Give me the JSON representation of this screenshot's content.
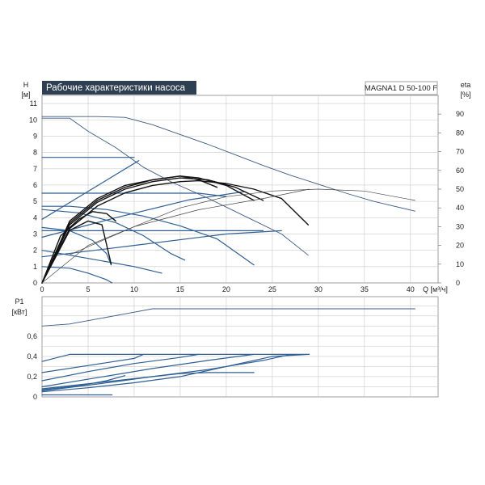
{
  "chart_data": [
    {
      "type": "line",
      "title": "Рабочие характеристики насоса",
      "model": "MAGNA1 D 50-100 F",
      "ylabel_left": "H",
      "yunit_left": "[м]",
      "ylabel_right": "eta",
      "yunit_right": "[%]",
      "xlabel": "Q [м³/ч]",
      "xlim": [
        0,
        43
      ],
      "ylim": [
        0,
        11.5
      ],
      "y2lim": [
        0,
        100
      ],
      "xticks": [
        "0",
        "5",
        "10",
        "15",
        "20",
        "25",
        "30",
        "35",
        "40"
      ],
      "yticks": [
        "0",
        "1",
        "2",
        "3",
        "4",
        "5",
        "6",
        "7",
        "8",
        "9",
        "10",
        "11"
      ],
      "y2ticks": [
        "0",
        "10",
        "20",
        "30",
        "40",
        "50",
        "60",
        "70",
        "80",
        "90"
      ],
      "grid": true,
      "series": [
        {
          "role": "max-curve",
          "color": "#3b5a85",
          "points": [
            [
              0,
              10.2
            ],
            [
              3,
              10.2
            ],
            [
              6,
              10.2
            ],
            [
              9,
              10.15
            ],
            [
              12,
              9.7
            ],
            [
              15,
              9.1
            ],
            [
              18,
              8.5
            ],
            [
              21,
              7.85
            ],
            [
              24,
              7.2
            ],
            [
              27,
              6.6
            ],
            [
              30,
              6.05
            ],
            [
              33,
              5.5
            ],
            [
              36,
              5.0
            ],
            [
              40.5,
              4.4
            ]
          ]
        },
        {
          "role": "max-curve",
          "color": "#3b5a85",
          "points": [
            [
              0,
              10.1
            ],
            [
              3,
              10.1
            ],
            [
              5,
              9.3
            ],
            [
              8,
              8.3
            ],
            [
              11,
              7.1
            ],
            [
              14,
              6.2
            ],
            [
              18,
              5.2
            ],
            [
              22,
              4.1
            ],
            [
              26,
              3.0
            ],
            [
              28.9,
              1.7
            ]
          ]
        },
        {
          "role": "const-pressure",
          "color": "#2f5f93",
          "points": [
            [
              0,
              7.7
            ],
            [
              10,
              7.7
            ]
          ]
        },
        {
          "role": "const-pressure",
          "color": "#2f5f93",
          "points": [
            [
              0,
              5.5
            ],
            [
              17,
              5.5
            ],
            [
              20,
              5.3
            ]
          ]
        },
        {
          "role": "const-pressure",
          "color": "#2f5f93",
          "points": [
            [
              0,
              3.2
            ],
            [
              24,
              3.2
            ]
          ]
        },
        {
          "role": "prop-pressure",
          "color": "#2f5f93",
          "points": [
            [
              0,
              3.9
            ],
            [
              10.5,
              7.5
            ]
          ]
        },
        {
          "role": "prop-pressure",
          "color": "#2f5f93",
          "points": [
            [
              0,
              2.8
            ],
            [
              8,
              4.0
            ],
            [
              16,
              5.1
            ],
            [
              22,
              5.6
            ]
          ]
        },
        {
          "role": "prop-pressure",
          "color": "#2f5f93",
          "points": [
            [
              0,
              1.6
            ],
            [
              10,
              2.3
            ],
            [
              20,
              3.0
            ],
            [
              26,
              3.2
            ]
          ]
        },
        {
          "role": "const-curve",
          "color": "#2f5f93",
          "points": [
            [
              0,
              4.7
            ],
            [
              3,
              4.7
            ],
            [
              7,
              4.5
            ],
            [
              11,
              4.1
            ],
            [
              15,
              3.5
            ],
            [
              19,
              2.7
            ],
            [
              23,
              1.1
            ]
          ]
        },
        {
          "role": "const-curve",
          "color": "#2f5f93",
          "points": [
            [
              0,
              4.5
            ],
            [
              4,
              4.3
            ],
            [
              8,
              3.7
            ],
            [
              11,
              2.9
            ],
            [
              14,
              1.8
            ],
            [
              15.5,
              1.4
            ]
          ]
        },
        {
          "role": "const-curve",
          "color": "#2f5f93",
          "points": [
            [
              0,
              3.4
            ],
            [
              3,
              3.2
            ],
            [
              5.5,
              2.6
            ],
            [
              7,
              1.8
            ],
            [
              7.5,
              1.1
            ]
          ]
        },
        {
          "role": "const-curve",
          "color": "#2f5f93",
          "points": [
            [
              0,
              1.0
            ],
            [
              3,
              0.9
            ],
            [
              5,
              0.6
            ],
            [
              7,
              0.2
            ],
            [
              7.6,
              0.0
            ]
          ]
        },
        {
          "role": "const-curve",
          "color": "#2f5f93",
          "points": [
            [
              0,
              2.0
            ],
            [
              5,
              1.5
            ],
            [
              10,
              1.0
            ],
            [
              13,
              0.6
            ]
          ]
        },
        {
          "role": "eta",
          "color": "#111111",
          "points": [
            [
              0,
              0
            ],
            [
              3,
              29
            ],
            [
              6,
              41
            ],
            [
              9,
              48
            ],
            [
              12,
              52
            ],
            [
              15,
              54
            ],
            [
              17,
              54.5
            ],
            [
              20,
              53
            ],
            [
              23,
              50
            ],
            [
              26,
              45
            ],
            [
              28.9,
              31
            ]
          ]
        },
        {
          "role": "eta",
          "color": "#111111",
          "points": [
            [
              0,
              0
            ],
            [
              3,
              31
            ],
            [
              6,
              43
            ],
            [
              9,
              50
            ],
            [
              12,
              54
            ],
            [
              15,
              56
            ],
            [
              18,
              55
            ],
            [
              21,
              51
            ],
            [
              24,
              44
            ]
          ]
        },
        {
          "role": "eta",
          "color": "#111111",
          "points": [
            [
              0,
              0
            ],
            [
              3,
              32
            ],
            [
              6,
              44
            ],
            [
              9,
              51
            ],
            [
              12,
              55
            ],
            [
              15,
              57
            ],
            [
              17,
              56
            ],
            [
              20,
              52
            ],
            [
              23,
              44
            ]
          ]
        },
        {
          "role": "eta",
          "color": "#111111",
          "points": [
            [
              0,
              0
            ],
            [
              3,
              33
            ],
            [
              6,
              45
            ],
            [
              9,
              52
            ],
            [
              12,
              55
            ],
            [
              15,
              57
            ],
            [
              17,
              55
            ],
            [
              19,
              51
            ]
          ]
        },
        {
          "role": "eta",
          "color": "#111111",
          "points": [
            [
              0,
              0
            ],
            [
              2,
              25
            ],
            [
              4,
              34
            ],
            [
              5.5,
              38
            ],
            [
              7,
              37
            ],
            [
              8,
              33
            ]
          ]
        },
        {
          "role": "eta",
          "color": "#111111",
          "points": [
            [
              0,
              0
            ],
            [
              3,
              28
            ],
            [
              5,
              33
            ],
            [
              6.5,
              31
            ],
            [
              7.5,
              10
            ]
          ]
        },
        {
          "role": "eta-thin",
          "color": "#444444",
          "points": [
            [
              0,
              0
            ],
            [
              5,
              20
            ],
            [
              10,
              30
            ],
            [
              15,
              40
            ],
            [
              20,
              46
            ],
            [
              25,
              49
            ],
            [
              30,
              50
            ],
            [
              35,
              49
            ],
            [
              40.5,
              44
            ]
          ]
        },
        {
          "role": "eta-thin",
          "color": "#444444",
          "points": [
            [
              3,
              15
            ],
            [
              10,
              30
            ],
            [
              17,
              39
            ],
            [
              24,
              45
            ],
            [
              29,
              50
            ]
          ]
        }
      ]
    },
    {
      "type": "line",
      "ylabel": "P1",
      "yunit": "[кВт]",
      "xlim": [
        0,
        43
      ],
      "ylim": [
        0,
        0.99
      ],
      "yticks": [
        "0",
        "0,2",
        "0,4",
        "0,6"
      ],
      "grid": true,
      "series": [
        {
          "role": "max-power",
          "color": "#3b5a85",
          "points": [
            [
              0,
              0.7
            ],
            [
              3,
              0.72
            ],
            [
              6,
              0.77
            ],
            [
              9,
              0.82
            ],
            [
              12,
              0.87
            ],
            [
              15,
              0.87
            ],
            [
              20,
              0.87
            ],
            [
              25,
              0.87
            ],
            [
              30,
              0.87
            ],
            [
              35,
              0.87
            ],
            [
              40.5,
              0.87
            ]
          ]
        },
        {
          "role": "power",
          "color": "#2f5f93",
          "points": [
            [
              0,
              0.35
            ],
            [
              3,
              0.42
            ],
            [
              29,
              0.42
            ]
          ]
        },
        {
          "role": "power",
          "color": "#2f5f93",
          "points": [
            [
              0,
              0.24
            ],
            [
              5,
              0.31
            ],
            [
              10,
              0.38
            ],
            [
              11,
              0.42
            ]
          ]
        },
        {
          "role": "power",
          "color": "#2f5f93",
          "points": [
            [
              0,
              0.16
            ],
            [
              5,
              0.25
            ],
            [
              10,
              0.33
            ],
            [
              15,
              0.39
            ],
            [
              17,
              0.42
            ]
          ]
        },
        {
          "role": "power",
          "color": "#2f5f93",
          "points": [
            [
              0,
              0.1
            ],
            [
              6,
              0.19
            ],
            [
              12,
              0.28
            ],
            [
              18,
              0.36
            ],
            [
              23,
              0.42
            ]
          ]
        },
        {
          "role": "power",
          "color": "#2f5f93",
          "points": [
            [
              0,
              0.08
            ],
            [
              6,
              0.14
            ],
            [
              12,
              0.2
            ],
            [
              18,
              0.27
            ],
            [
              24,
              0.36
            ],
            [
              27,
              0.42
            ]
          ]
        },
        {
          "role": "power",
          "color": "#2f5f93",
          "points": [
            [
              0,
              0.06
            ],
            [
              8,
              0.15
            ],
            [
              12,
              0.2
            ],
            [
              15,
              0.23
            ],
            [
              18,
              0.24
            ],
            [
              23,
              0.24
            ]
          ]
        },
        {
          "role": "power",
          "color": "#2f5f93",
          "points": [
            [
              0,
              0.05
            ],
            [
              5,
              0.09
            ],
            [
              10,
              0.14
            ],
            [
              15,
              0.2
            ],
            [
              20,
              0.3
            ],
            [
              25,
              0.4
            ],
            [
              29,
              0.42
            ]
          ]
        },
        {
          "role": "power",
          "color": "#2f5f93",
          "points": [
            [
              0,
              0.07
            ],
            [
              4,
              0.11
            ],
            [
              7,
              0.16
            ],
            [
              9,
              0.21
            ]
          ]
        },
        {
          "role": "power",
          "color": "#2f5f93",
          "points": [
            [
              0,
              0.02
            ],
            [
              7.6,
              0.02
            ]
          ]
        }
      ]
    }
  ]
}
